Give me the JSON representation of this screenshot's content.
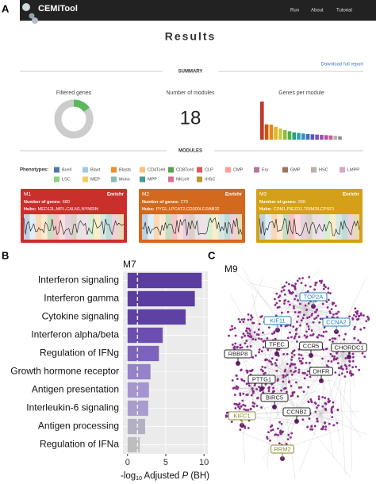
{
  "panels": [
    "A",
    "B",
    "C"
  ],
  "navbar": {
    "brand": "CEMiTool",
    "links": [
      "Run",
      "About",
      "Tutorial"
    ]
  },
  "header": {
    "title": "Results"
  },
  "summary": {
    "heading": "SUMMARY",
    "download": "Download full report",
    "filtered_genes": {
      "label": "Filtered genes",
      "percent": 15,
      "color": "#5cb85c"
    },
    "modules": {
      "label": "Number of modules",
      "count": 18
    },
    "genes_per_module": {
      "label": "Genes per module",
      "values": [
        680,
        273,
        269,
        230,
        200,
        170,
        150,
        130,
        120,
        110,
        100,
        95,
        90,
        85,
        80,
        75,
        70,
        60
      ],
      "colors": [
        "#c0392b",
        "#d35400",
        "#e08a1e",
        "#e6b422",
        "#c7c94a",
        "#8fbc3f",
        "#4caf50",
        "#2e9e7a",
        "#26a5a5",
        "#2f8fc4",
        "#3b6fc7",
        "#5a55c2",
        "#7b4fc0",
        "#9c4fb8",
        "#b84fa6",
        "#cc5a8f",
        "#b0b0b0",
        "#8e8e8e"
      ]
    }
  },
  "modules": {
    "heading": "MODULES",
    "phenotype_label": "Phenotypes:",
    "phenotypes": [
      {
        "name": "Bcell",
        "color": "#4e79a7"
      },
      {
        "name": "Blast",
        "color": "#a0cbe8"
      },
      {
        "name": "Blasts",
        "color": "#f28e2b"
      },
      {
        "name": "CD4Tcell",
        "color": "#ffbe7d"
      },
      {
        "name": "CD8Tcell",
        "color": "#59a14f"
      },
      {
        "name": "CLP",
        "color": "#e15759"
      },
      {
        "name": "CMP",
        "color": "#ff9d9a"
      },
      {
        "name": "Ery",
        "color": "#b07aa1"
      },
      {
        "name": "GMP",
        "color": "#9c755f"
      },
      {
        "name": "HSC",
        "color": "#bab0ac"
      },
      {
        "name": "LMPP",
        "color": "#d4a6c8"
      },
      {
        "name": "LSC",
        "color": "#8cd17d"
      },
      {
        "name": "MEP",
        "color": "#f1ce63"
      },
      {
        "name": "Mono",
        "color": "#86bcb6"
      },
      {
        "name": "MPP",
        "color": "#499894"
      },
      {
        "name": "NKcell",
        "color": "#d37295"
      },
      {
        "name": "rHSC",
        "color": "#b6992d"
      }
    ],
    "cards": [
      {
        "name": "M1",
        "link": "Enrichr",
        "genes_label": "Number of genes:",
        "genes": 680,
        "hubs_label": "Hubs:",
        "hubs": "MED12L,MPL,CALN1,NYNRIN",
        "color": "#c9302c"
      },
      {
        "name": "M2",
        "link": "Enrichr",
        "genes_label": "Number of genes:",
        "genes": 273,
        "hubs_label": "Hubs:",
        "hubs": "PYGL,LPCAT2,CD300LF,RAB32",
        "color": "#d2691e"
      },
      {
        "name": "M3",
        "link": "Enrichr",
        "genes_label": "Number of genes:",
        "genes": 269,
        "hubs_label": "Hubs:",
        "hubs": "CDM1,PIEZO1,TRIM28,CPSF1",
        "color": "#d4a017"
      }
    ]
  },
  "chart_data": {
    "type": "bar",
    "orientation": "horizontal",
    "title": "M7",
    "categories": [
      "Interferon signaling",
      "Interferon gamma",
      "Cytokine signaling",
      "Interferon alpha/beta",
      "Regulation of IFNg",
      "Growth hormone receptor",
      "Antigen presentation",
      "Interleukin-6 signaling",
      "Antigen processing",
      "Regulation of IFNa"
    ],
    "values": [
      9.7,
      8.8,
      7.6,
      4.6,
      4.1,
      3.0,
      2.8,
      2.7,
      2.3,
      1.6
    ],
    "colors": [
      "#5a3d9e",
      "#5a3d9e",
      "#5e42a3",
      "#6a4fb0",
      "#7d63bd",
      "#9682c9",
      "#a595cf",
      "#a89ccf",
      "#b4b0c4",
      "#bdbdbd"
    ],
    "xlim": [
      -0.6,
      10.5
    ],
    "xticks": [
      0,
      5,
      10
    ],
    "x_label": {
      "prefix": "-log",
      "sub": "10",
      "middle": " Adjusted ",
      "italic": "P",
      "suffix": " (BH)"
    },
    "threshold": 1.3,
    "grid": true
  },
  "network": {
    "title": "M9",
    "nodes": [
      {
        "label": "TOP2A",
        "color": "#2a7fb8"
      },
      {
        "label": "KIF11",
        "color": "#2a7fb8"
      },
      {
        "label": "CCNA2",
        "color": "#2a7fb8"
      },
      {
        "label": "TFEC",
        "color": "#222222"
      },
      {
        "label": "CCR5",
        "color": "#222222"
      },
      {
        "label": "CHORDC1",
        "color": "#222222"
      },
      {
        "label": "RBBP8",
        "color": "#222222"
      },
      {
        "label": "DHFR",
        "color": "#222222"
      },
      {
        "label": "PTTG1",
        "color": "#222222"
      },
      {
        "label": "BIRC5",
        "color": "#222222"
      },
      {
        "label": "KIFC1",
        "color": "#8a8a2a"
      },
      {
        "label": "CCNB2",
        "color": "#222222"
      },
      {
        "label": "RRM2",
        "color": "#8a8a2a"
      }
    ]
  }
}
